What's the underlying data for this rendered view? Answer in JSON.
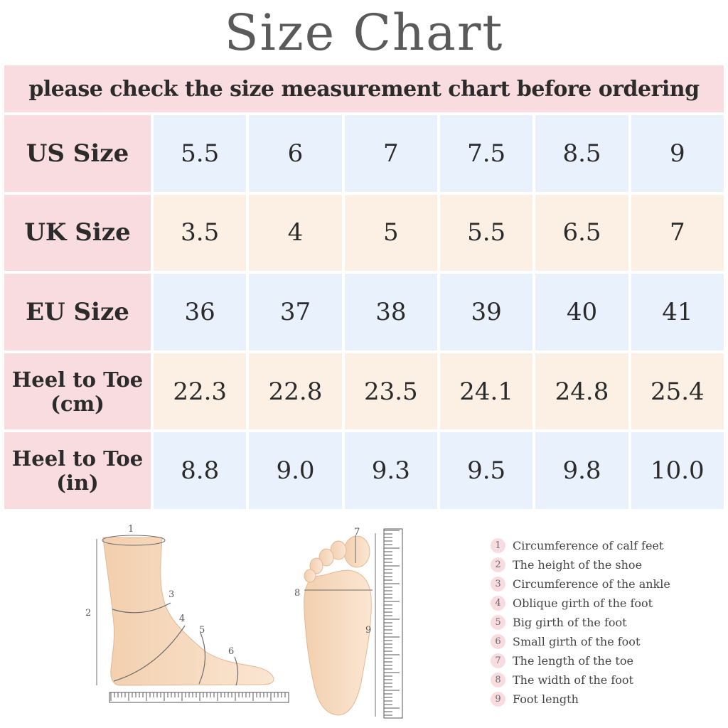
{
  "title": "Size Chart",
  "subtitle": "please check the size measurement chart before ordering",
  "rows": [
    {
      "label": "US Size",
      "values": [
        "5.5",
        "6",
        "7",
        "7.5",
        "8.5",
        "9"
      ]
    },
    {
      "label": "UK Size",
      "values": [
        "3.5",
        "4",
        "5",
        "5.5",
        "6.5",
        "7"
      ]
    },
    {
      "label": "EU Size",
      "values": [
        "36",
        "37",
        "38",
        "39",
        "40",
        "41"
      ]
    },
    {
      "label_line1": "Heel to Toe",
      "label_line2": "(cm)",
      "values": [
        "22.3",
        "22.8",
        "23.5",
        "24.1",
        "24.8",
        "25.4"
      ]
    },
    {
      "label_line1": "Heel to Toe",
      "label_line2": "(in)",
      "values": [
        "8.8",
        "9.0",
        "9.3",
        "9.5",
        "9.8",
        "10.0"
      ]
    }
  ],
  "diagram_numbers": [
    "1",
    "2",
    "3",
    "4",
    "5",
    "6",
    "7",
    "8",
    "9"
  ],
  "legend": [
    {
      "num": "1",
      "text": "Circumference of calf feet"
    },
    {
      "num": "2",
      "text": "The height of the shoe"
    },
    {
      "num": "3",
      "text": "Circumference of the ankle"
    },
    {
      "num": "4",
      "text": "Oblique girth of the foot"
    },
    {
      "num": "5",
      "text": "Big girth of the foot"
    },
    {
      "num": "6",
      "text": "Small girth of the foot"
    },
    {
      "num": "7",
      "text": "The length of the toe"
    },
    {
      "num": "8",
      "text": "The width of the foot"
    },
    {
      "num": "9",
      "text": "Foot length"
    }
  ],
  "colors": {
    "label_bg": "#f9dcdf",
    "row_blue": "#e9f1fd",
    "row_peach": "#fcf0e4",
    "skin": "#f7dcc0",
    "title_text": "#5a5a5a"
  }
}
